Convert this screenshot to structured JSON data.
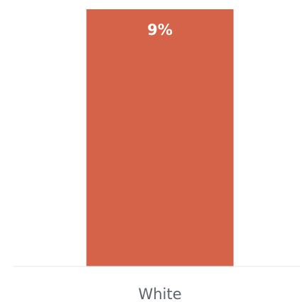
{
  "chart_data": {
    "type": "bar",
    "categories": [
      "White"
    ],
    "values": [
      9
    ],
    "data_labels": [
      "9%"
    ],
    "title": "",
    "xlabel": "",
    "ylabel": "",
    "ylim": [
      0,
      9
    ],
    "grid": false,
    "legend": "none",
    "colors": {
      "bar": "#d4634a",
      "baseline": "#e6e6e6",
      "data_label": "#ffffff",
      "category_label": "#5c6470"
    }
  }
}
